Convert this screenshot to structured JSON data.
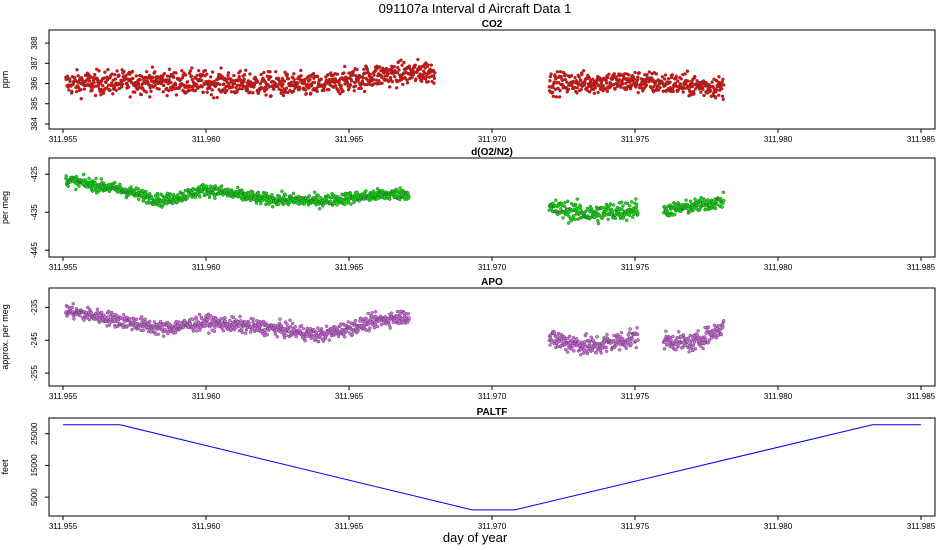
{
  "figure": {
    "title": "091107a   Interval d Aircraft Data 1",
    "xlabel": "day of year",
    "xlim": [
      311.955,
      311.985
    ],
    "xticks": [
      "311.955",
      "311.960",
      "311.965",
      "311.970",
      "311.975",
      "311.980",
      "311.985"
    ]
  },
  "chart_data": [
    {
      "type": "scatter",
      "title": "CO2",
      "ylabel": "ppm",
      "ylim": [
        383.9,
        388.5
      ],
      "yticks": [
        "384",
        "385",
        "386",
        "387",
        "388"
      ],
      "color": "#ff0000",
      "point_style": "open circle",
      "segments": [
        {
          "x_start": 311.9551,
          "x_end": 311.968,
          "trend": [
            [
              311.9551,
              386.0
            ],
            [
              311.958,
              386.1
            ],
            [
              311.961,
              386.0
            ],
            [
              311.964,
              385.9
            ],
            [
              311.966,
              386.4
            ],
            [
              311.968,
              386.6
            ]
          ],
          "spread": 0.6
        },
        {
          "x_start": 311.972,
          "x_end": 311.9781,
          "trend": [
            [
              311.972,
              386.0
            ],
            [
              311.975,
              386.1
            ],
            [
              311.9781,
              385.8
            ]
          ],
          "spread": 0.55
        }
      ]
    },
    {
      "type": "scatter",
      "title": "d(O2/N2)",
      "ylabel": "per meg",
      "ylim": [
        -446.0,
        -421.5
      ],
      "yticks": [
        "-425",
        "-435",
        "-445"
      ],
      "color": "#00ee00",
      "point_style": "open circle",
      "segments": [
        {
          "x_start": 311.9551,
          "x_end": 311.9671,
          "trend": [
            [
              311.9551,
              -426.5
            ],
            [
              311.957,
              -429.0
            ],
            [
              311.9585,
              -432.0
            ],
            [
              311.96,
              -429.0
            ],
            [
              311.962,
              -431.5
            ],
            [
              311.964,
              -432.0
            ],
            [
              311.966,
              -430.5
            ],
            [
              311.9671,
              -430.0
            ]
          ],
          "spread": 1.6
        },
        {
          "x_start": 311.972,
          "x_end": 311.9751,
          "trend": [
            [
              311.972,
              -434.0
            ],
            [
              311.9735,
              -435.5
            ],
            [
              311.9751,
              -434.0
            ]
          ],
          "spread": 2.6
        },
        {
          "x_start": 311.976,
          "x_end": 311.9781,
          "trend": [
            [
              311.976,
              -434.5
            ],
            [
              311.977,
              -433.5
            ],
            [
              311.9781,
              -432.0
            ]
          ],
          "spread": 1.8
        }
      ]
    },
    {
      "type": "scatter",
      "title": "APO",
      "ylabel": "approx. per meg",
      "ylim": [
        -258.0,
        -230.0
      ],
      "yticks": [
        "-235",
        "-245",
        "-255"
      ],
      "color": "#dd66ee",
      "point_style": "open circle",
      "segments": [
        {
          "x_start": 311.9551,
          "x_end": 311.9671,
          "trend": [
            [
              311.9551,
              -236.0
            ],
            [
              311.957,
              -239.0
            ],
            [
              311.9585,
              -241.5
            ],
            [
              311.96,
              -239.5
            ],
            [
              311.9625,
              -241.5
            ],
            [
              311.964,
              -243.5
            ],
            [
              311.966,
              -239.0
            ],
            [
              311.9671,
              -237.5
            ]
          ],
          "spread": 2.2
        },
        {
          "x_start": 311.972,
          "x_end": 311.9751,
          "trend": [
            [
              311.972,
              -244.5
            ],
            [
              311.9735,
              -247.0
            ],
            [
              311.9751,
              -244.0
            ]
          ],
          "spread": 3.2
        },
        {
          "x_start": 311.976,
          "x_end": 311.9781,
          "trend": [
            [
              311.976,
              -245.0
            ],
            [
              311.977,
              -246.0
            ],
            [
              311.9781,
              -241.0
            ]
          ],
          "spread": 2.6
        }
      ]
    },
    {
      "type": "line",
      "title": "PALTF",
      "ylabel": "feet",
      "ylim": [
        0,
        29000
      ],
      "yticks": [
        "5000",
        "15000",
        "25000"
      ],
      "color": "#0000ff",
      "x": [
        311.955,
        311.957,
        311.9693,
        311.9708,
        311.9833,
        311.985
      ],
      "y": [
        27800,
        27800,
        1000,
        1000,
        27800,
        27800
      ]
    }
  ]
}
